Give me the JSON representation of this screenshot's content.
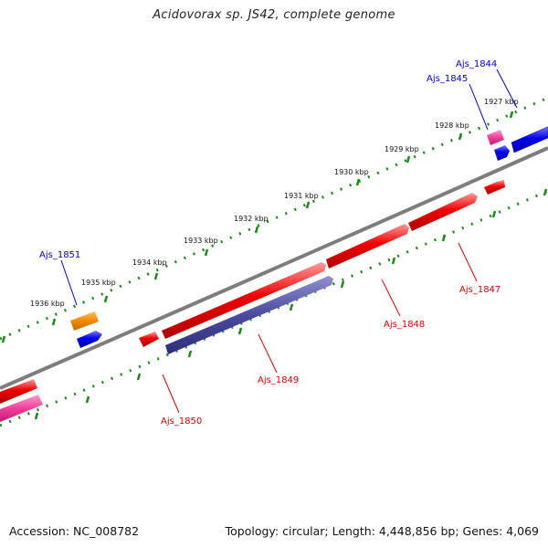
{
  "title": "Acidovorax sp. JS42, complete genome",
  "footer": {
    "accession": "Accession: NC_008782",
    "summary": "Topology: circular; Length: 4,448,856 bp; Genes: 4,069"
  },
  "colors": {
    "backbone": "#808080",
    "tick": "#1a8a1a",
    "forward_label": "#0000cc",
    "reverse_label": "#dd0000",
    "red": "#ee0000",
    "blue": "#0000ee",
    "orange": "#f08a00",
    "pink": "#f0409a",
    "slate": "#4a4aa0"
  },
  "scale_ticks": [
    {
      "label": "1927 kbp"
    },
    {
      "label": "1928 kbp"
    },
    {
      "label": "1929 kbp"
    },
    {
      "label": "1930 kbp"
    },
    {
      "label": "1931 kbp"
    },
    {
      "label": "1932 kbp"
    },
    {
      "label": "1933 kbp"
    },
    {
      "label": "1934 kbp"
    },
    {
      "label": "1935 kbp"
    },
    {
      "label": "1936 kbp"
    }
  ],
  "gene_labels": [
    {
      "text": "Ajs_1844",
      "strand": "forward"
    },
    {
      "text": "Ajs_1845",
      "strand": "forward"
    },
    {
      "text": "Ajs_1851",
      "strand": "forward"
    },
    {
      "text": "Ajs_1847",
      "strand": "reverse"
    },
    {
      "text": "Ajs_1848",
      "strand": "reverse"
    },
    {
      "text": "Ajs_1849",
      "strand": "reverse"
    },
    {
      "text": "Ajs_1850",
      "strand": "reverse"
    }
  ]
}
